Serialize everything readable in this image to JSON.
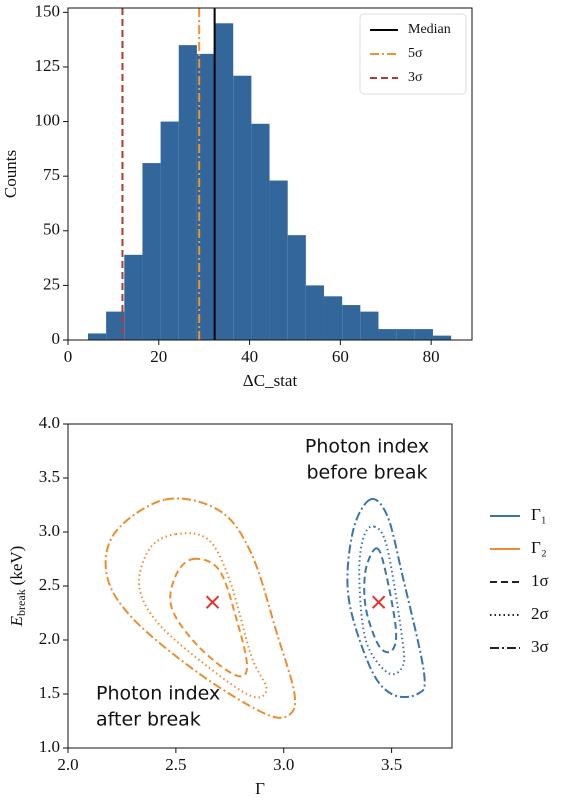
{
  "chart_data": [
    {
      "type": "histogram",
      "x_label": "ΔC_stat",
      "y_label": "Counts",
      "bins": [
        4.4,
        8.4,
        12.4,
        16.4,
        20.4,
        24.4,
        28.4,
        32.4,
        36.4,
        40.4,
        44.4,
        48.4,
        52.4,
        56.4,
        60.4,
        64.4,
        68.4,
        72.4,
        76.4,
        80.4,
        84.4
      ],
      "counts": [
        3,
        13,
        39,
        81,
        100,
        135,
        131,
        145,
        121,
        99,
        73,
        48,
        25,
        20,
        16,
        13,
        5,
        5,
        5,
        2
      ],
      "color": "#33679c",
      "xlim": [
        0,
        89
      ],
      "ylim": [
        0,
        152
      ],
      "xticks": [
        0,
        20,
        40,
        60,
        80
      ],
      "yticks": [
        0,
        25,
        50,
        75,
        100,
        125,
        150
      ],
      "vlines": [
        {
          "name": "Median",
          "x": 32.3,
          "color": "#000000",
          "style": "solid"
        },
        {
          "name": "5σ",
          "x": 28.9,
          "color": "#f0922e",
          "style": "dashdot"
        },
        {
          "name": "3σ",
          "x": 12,
          "color": "#b03a2e",
          "style": "dashed"
        }
      ],
      "legend": "upper right"
    },
    {
      "type": "contour",
      "x_label": "Γ",
      "y_label": {
        "symbol": "E",
        "subscript": "break",
        "unit": "(keV)"
      },
      "xlim": [
        2.0,
        3.78
      ],
      "ylim": [
        1.0,
        4.0
      ],
      "xticks": [
        {
          "value": 2.0,
          "label": "2.0"
        },
        {
          "value": 2.5,
          "label": "2.5"
        },
        {
          "value": 3.0,
          "label": "3.0"
        },
        {
          "value": 3.5,
          "label": "3.5"
        }
      ],
      "yticks": [
        {
          "value": 1.0,
          "label": "1.0"
        },
        {
          "value": 1.5,
          "label": "1.5"
        },
        {
          "value": 2.0,
          "label": "2.0"
        },
        {
          "value": 2.5,
          "label": "2.5"
        },
        {
          "value": 3.0,
          "label": "3.0"
        },
        {
          "value": 3.5,
          "label": "3.5"
        },
        {
          "value": 4.0,
          "label": "4.0"
        }
      ],
      "levels": [
        {
          "label": "1σ",
          "style": "dashed"
        },
        {
          "label": "2σ",
          "style": "dotted"
        },
        {
          "label": "3σ",
          "style": "dashdot"
        }
      ],
      "series": [
        {
          "name": "Γ₁",
          "color": "#3a75a8",
          "contours": [
            {
              "x": [
                3.43,
                3.47,
                3.52,
                3.5,
                3.44,
                3.38,
                3.38
              ],
              "y": [
                2.85,
                2.65,
                2.1,
                1.9,
                1.95,
                2.3,
                2.65
              ]
            },
            {
              "x": [
                3.42,
                3.48,
                3.55,
                3.55,
                3.48,
                3.38,
                3.35,
                3.37
              ],
              "y": [
                3.05,
                2.85,
                2.0,
                1.75,
                1.7,
                2.0,
                2.6,
                2.95
              ]
            },
            {
              "x": [
                3.4,
                3.48,
                3.55,
                3.65,
                3.62,
                3.5,
                3.4,
                3.3,
                3.32
              ],
              "y": [
                3.3,
                3.15,
                2.6,
                1.7,
                1.5,
                1.5,
                1.75,
                2.4,
                3.0
              ]
            }
          ]
        },
        {
          "name": "Γ₂",
          "color": "#ee8d2e",
          "contours": [
            {
              "x": [
                2.58,
                2.7,
                2.78,
                2.83,
                2.77,
                2.6,
                2.48,
                2.5
              ],
              "y": [
                2.75,
                2.65,
                2.2,
                1.75,
                1.68,
                1.95,
                2.3,
                2.6
              ]
            },
            {
              "x": [
                2.5,
                2.65,
                2.75,
                2.85,
                2.92,
                2.85,
                2.65,
                2.42,
                2.33,
                2.38
              ],
              "y": [
                2.98,
                2.93,
                2.55,
                1.85,
                1.55,
                1.48,
                1.75,
                2.15,
                2.5,
                2.85
              ]
            },
            {
              "x": [
                2.45,
                2.7,
                2.85,
                2.97,
                3.05,
                3.02,
                2.9,
                2.6,
                2.3,
                2.18,
                2.22
              ],
              "y": [
                3.3,
                3.2,
                2.8,
                2.05,
                1.5,
                1.3,
                1.33,
                1.7,
                2.2,
                2.6,
                3.0
              ]
            }
          ]
        }
      ],
      "markers": {
        "color": "#e8302a",
        "x": [
          2.67,
          3.44
        ],
        "y": [
          2.35,
          2.35
        ]
      },
      "annotations": [
        [
          "Photon index",
          "before break"
        ],
        [
          "Photon index",
          "after break"
        ]
      ],
      "legend": "outside right"
    }
  ]
}
